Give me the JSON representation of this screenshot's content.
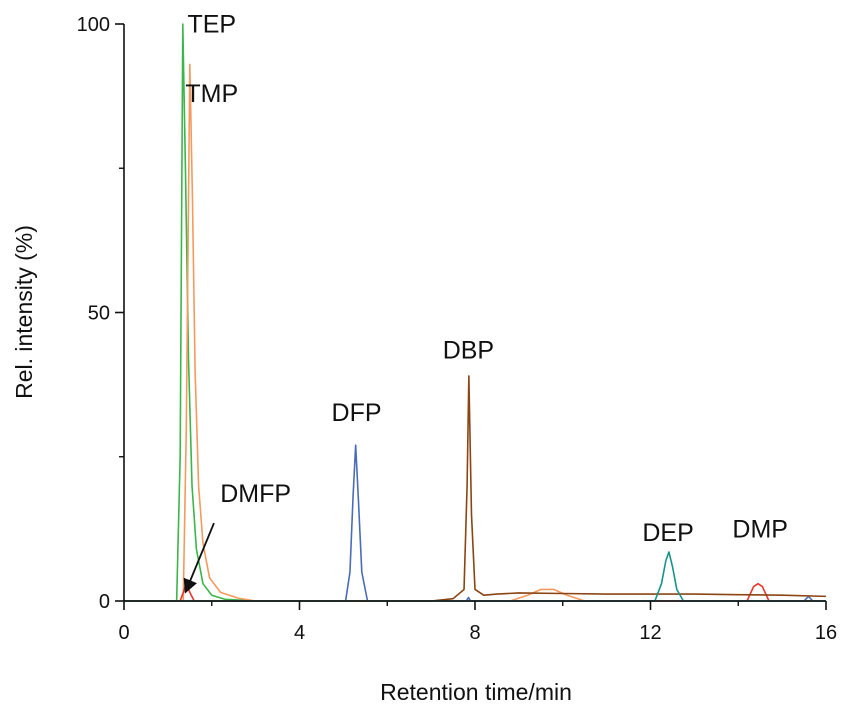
{
  "chart_data": {
    "type": "line",
    "xlabel": "Retention time/min",
    "ylabel": "Rel. intensity (%)",
    "xlim": [
      0,
      16
    ],
    "ylim": [
      0,
      100
    ],
    "xticks": [
      0,
      4,
      8,
      12,
      16
    ],
    "yticks": [
      0,
      50,
      100
    ],
    "yticks_minor": [
      25,
      75
    ],
    "grid": false,
    "legend": "none",
    "series": [
      {
        "color": "#3cb54a",
        "x": [
          0,
          1.2,
          1.28,
          1.34,
          1.4,
          1.47,
          1.55,
          1.65,
          1.8,
          2.0,
          2.3,
          3,
          16
        ],
        "y": [
          0,
          0,
          25,
          100,
          75,
          42,
          20,
          9,
          3,
          1,
          0.3,
          0,
          0
        ]
      },
      {
        "color": "#f59a5e",
        "x": [
          0,
          1.35,
          1.42,
          1.5,
          1.56,
          1.62,
          1.7,
          1.8,
          1.95,
          2.2,
          2.6,
          3,
          8.8,
          9.2,
          9.5,
          9.8,
          10.1,
          10.5,
          12,
          16
        ],
        "y": [
          0,
          0,
          30,
          93,
          70,
          40,
          20,
          10,
          4,
          1.5,
          0.5,
          0,
          0,
          1,
          2,
          2,
          1,
          0,
          0,
          0
        ]
      },
      {
        "color": "#e8362c",
        "x": [
          0,
          1.28,
          1.35,
          1.42,
          1.5,
          1.6,
          8,
          14.2,
          14.35,
          14.45,
          14.55,
          14.7,
          16
        ],
        "y": [
          0,
          0,
          1.5,
          3,
          1.5,
          0,
          0,
          0,
          2.5,
          3,
          2.5,
          0,
          0
        ]
      },
      {
        "color": "#4a6cb7",
        "x": [
          0,
          5.05,
          5.15,
          5.22,
          5.28,
          5.34,
          5.42,
          5.55,
          7.8,
          7.85,
          7.9,
          15.5,
          15.6,
          15.7,
          16
        ],
        "y": [
          0,
          0,
          5,
          18,
          27,
          18,
          5,
          0,
          0,
          0.6,
          0,
          0,
          0.8,
          0,
          0
        ]
      },
      {
        "color": "#8b4513",
        "x": [
          0,
          7,
          7.5,
          7.75,
          7.82,
          7.86,
          7.92,
          8.0,
          8.2,
          8.5,
          9,
          10,
          11,
          12,
          13,
          14,
          15,
          16
        ],
        "y": [
          0,
          0,
          0.4,
          2,
          20,
          39,
          15,
          2,
          1,
          1.2,
          1.4,
          1.3,
          1.2,
          1.2,
          1.2,
          1.1,
          1.0,
          0.8
        ]
      },
      {
        "color": "#17938a",
        "x": [
          0,
          12.1,
          12.25,
          12.35,
          12.42,
          12.5,
          12.6,
          12.75,
          16
        ],
        "y": [
          0,
          0,
          3,
          7,
          8.5,
          6,
          2,
          0,
          0
        ]
      }
    ],
    "annotations": [
      {
        "text": "TEP",
        "x": 2.0,
        "y": 98.5
      },
      {
        "text": "TMP",
        "x": 2.0,
        "y": 86.5
      },
      {
        "text": "DMFP",
        "x": 3.0,
        "y": 17.2
      },
      {
        "text": "DFP",
        "x": 5.3,
        "y": 31.2
      },
      {
        "text": "DBP",
        "x": 7.85,
        "y": 42
      },
      {
        "text": "DEP",
        "x": 12.4,
        "y": 10.4
      },
      {
        "text": "DMP",
        "x": 14.5,
        "y": 11
      }
    ],
    "arrow": {
      "from": [
        2.05,
        13.5
      ],
      "to": [
        1.4,
        1.5
      ]
    }
  }
}
